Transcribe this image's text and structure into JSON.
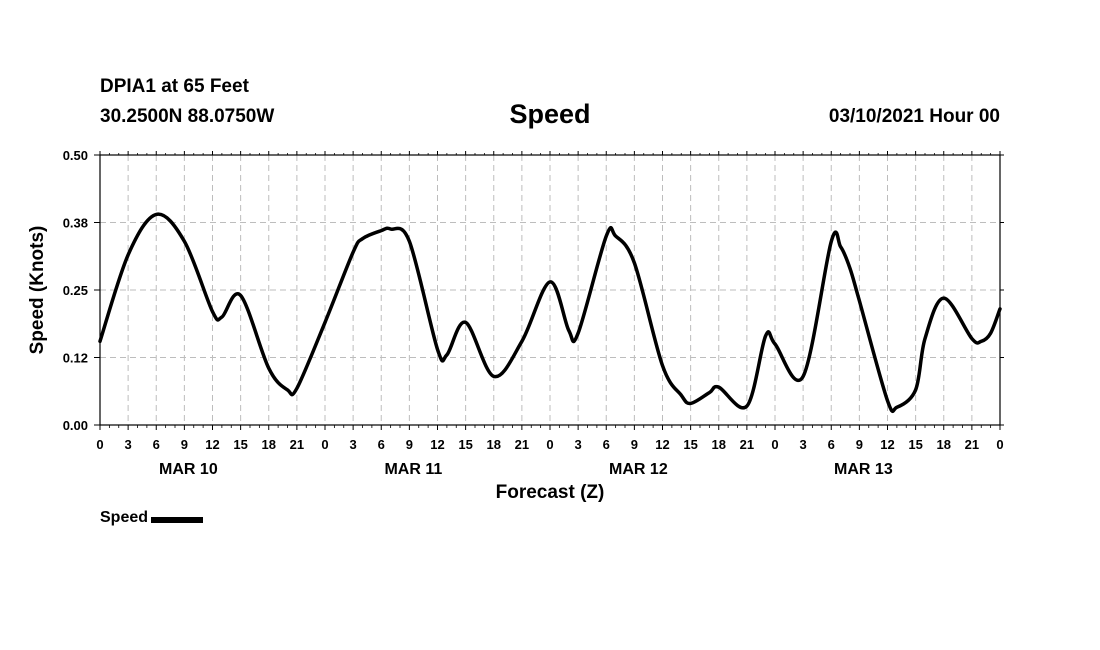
{
  "header": {
    "station": "DPIA1 at 65 Feet",
    "coordinates": "30.2500N 88.0750W",
    "title": "Speed",
    "date": "03/10/2021 Hour 00"
  },
  "legend": {
    "label": "Speed",
    "color": "#000000"
  },
  "chart_data": {
    "type": "line",
    "title": "Speed",
    "xlabel": "Forecast (Z)",
    "ylabel": "Speed (Knots)",
    "ylim": [
      0,
      0.5
    ],
    "xlim_hours": [
      0,
      96
    ],
    "grid": true,
    "legend_position": "bottom-left",
    "yticks": [
      {
        "value": 0.0,
        "label": "0.00"
      },
      {
        "value": 0.125,
        "label": "0.12"
      },
      {
        "value": 0.25,
        "label": "0.25"
      },
      {
        "value": 0.375,
        "label": "0.38"
      },
      {
        "value": 0.5,
        "label": "0.50"
      }
    ],
    "xtick_labels": [
      "0",
      "3",
      "6",
      "9",
      "12",
      "15",
      "18",
      "21",
      "0",
      "3",
      "6",
      "9",
      "12",
      "15",
      "18",
      "21",
      "0",
      "3",
      "6",
      "9",
      "12",
      "15",
      "18",
      "21",
      "0",
      "3",
      "6",
      "9",
      "12",
      "15",
      "18",
      "21",
      "0"
    ],
    "day_labels": [
      {
        "label": "MAR 10",
        "hour": 9
      },
      {
        "label": "MAR 11",
        "hour": 33
      },
      {
        "label": "MAR 12",
        "hour": 57
      },
      {
        "label": "MAR 13",
        "hour": 81
      }
    ],
    "series": [
      {
        "name": "Speed",
        "color": "#000000",
        "x": [
          0,
          3,
          6,
          9,
          12,
          13,
          15,
          18,
          20,
          21,
          24,
          27,
          28,
          30,
          31,
          33,
          36,
          37,
          39,
          42,
          45,
          48,
          50,
          51,
          54,
          55,
          57,
          60,
          62,
          63,
          65,
          66,
          69,
          71,
          72,
          75,
          78,
          79,
          80,
          81,
          84,
          85,
          87,
          88,
          90,
          93,
          94,
          95,
          96
        ],
        "y": [
          0.155,
          0.315,
          0.39,
          0.34,
          0.21,
          0.2,
          0.24,
          0.105,
          0.065,
          0.068,
          0.19,
          0.32,
          0.345,
          0.36,
          0.363,
          0.34,
          0.14,
          0.13,
          0.19,
          0.09,
          0.155,
          0.265,
          0.175,
          0.17,
          0.35,
          0.35,
          0.3,
          0.11,
          0.055,
          0.04,
          0.06,
          0.07,
          0.035,
          0.165,
          0.15,
          0.09,
          0.34,
          0.33,
          0.29,
          0.23,
          0.045,
          0.033,
          0.065,
          0.16,
          0.235,
          0.16,
          0.155,
          0.17,
          0.215
        ]
      }
    ]
  }
}
